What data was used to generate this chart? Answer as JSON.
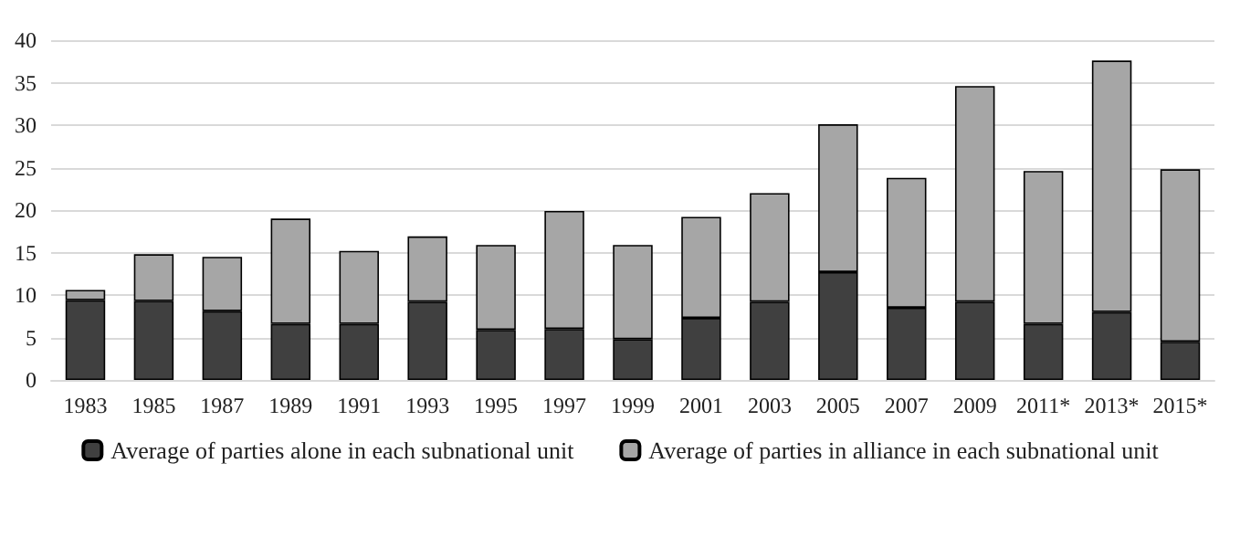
{
  "chart_data": {
    "type": "bar",
    "stacked": true,
    "categories": [
      "1983",
      "1985",
      "1987",
      "1989",
      "1991",
      "1993",
      "1995",
      "1997",
      "1999",
      "2001",
      "2003",
      "2005",
      "2007",
      "2009",
      "2011*",
      "2013*",
      "2015*"
    ],
    "series": [
      {
        "name": "Average of parties alone in each subnational unit",
        "color": "#404040",
        "values": [
          9.4,
          9.3,
          8.1,
          6.6,
          6.6,
          9.2,
          5.9,
          6.0,
          4.8,
          7.3,
          9.2,
          12.7,
          8.5,
          9.2,
          6.6,
          8.0,
          4.5
        ]
      },
      {
        "name": "Average of parties in alliance in each subnational unit",
        "color": "#a6a6a6",
        "values": [
          1.2,
          5.5,
          6.4,
          12.4,
          8.6,
          7.7,
          10.0,
          13.9,
          11.1,
          11.9,
          12.8,
          17.4,
          15.3,
          25.4,
          18.0,
          29.6,
          20.3
        ]
      }
    ],
    "ylim": [
      0,
      40
    ],
    "yticks": [
      0,
      5,
      10,
      15,
      20,
      25,
      30,
      35,
      40
    ],
    "grid": "y",
    "legend": "bottom"
  }
}
